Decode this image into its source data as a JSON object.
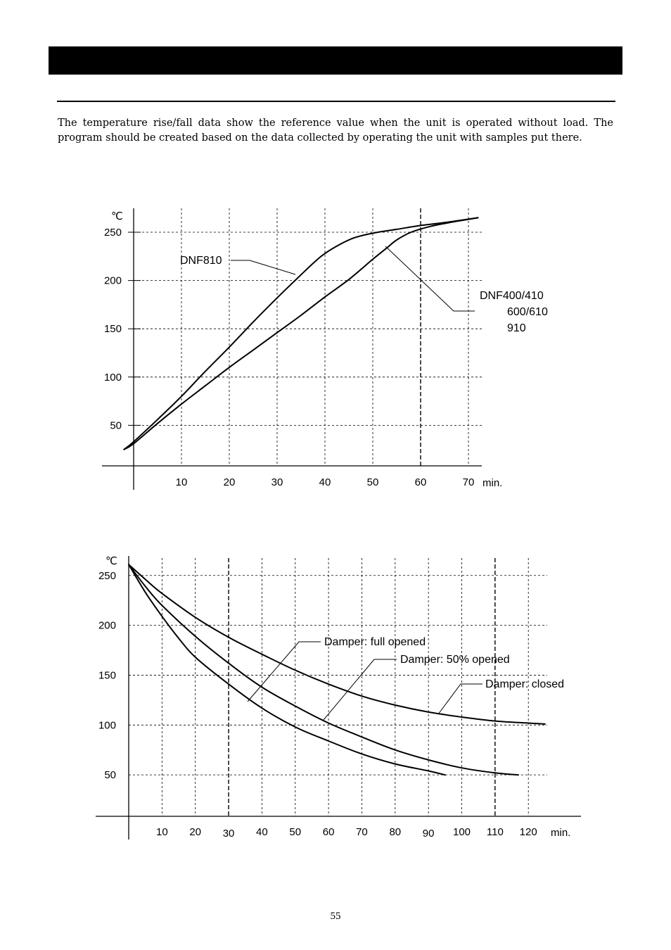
{
  "intro_text": "The temperature rise/fall data show the reference value when the unit is operated without load. The program should be created based on the data collected by operating the unit with samples put there.",
  "page_number": "55",
  "chart_data": [
    {
      "type": "line",
      "y_unit": "℃",
      "x_unit": "min.",
      "x_ticks": [
        10,
        20,
        30,
        40,
        50,
        60,
        70
      ],
      "y_ticks": [
        50,
        100,
        150,
        200,
        250
      ],
      "xlim": [
        0,
        72
      ],
      "ylim": [
        0,
        265
      ],
      "grid": true,
      "series": [
        {
          "name": "DNF810",
          "points": [
            [
              -2,
              25
            ],
            [
              0,
              33
            ],
            [
              5,
              56
            ],
            [
              10,
              80
            ],
            [
              15,
              106
            ],
            [
              20,
              131
            ],
            [
              25,
              157
            ],
            [
              30,
              182
            ],
            [
              35,
              206
            ],
            [
              38,
              220
            ],
            [
              40,
              228
            ],
            [
              43,
              237
            ],
            [
              46,
              244
            ],
            [
              50,
              249
            ],
            [
              55,
              253
            ],
            [
              60,
              257
            ],
            [
              65,
              260
            ],
            [
              72,
              265
            ]
          ]
        },
        {
          "name": "DNF400/410 600/610 910",
          "points": [
            [
              -2,
              25
            ],
            [
              0,
              31
            ],
            [
              5,
              52
            ],
            [
              10,
              72
            ],
            [
              15,
              91
            ],
            [
              20,
              110
            ],
            [
              25,
              128
            ],
            [
              30,
              146
            ],
            [
              35,
              164
            ],
            [
              40,
              183
            ],
            [
              45,
              201
            ],
            [
              50,
              222
            ],
            [
              53,
              234
            ],
            [
              55,
              242
            ],
            [
              58,
              250
            ],
            [
              62,
              256
            ],
            [
              66,
              260
            ],
            [
              72,
              265
            ]
          ]
        }
      ],
      "labels": [
        "DNF810",
        "DNF400/410",
        "600/610",
        "910"
      ]
    },
    {
      "type": "line",
      "y_unit": "℃",
      "x_unit": "min.",
      "x_ticks": [
        10,
        20,
        30,
        40,
        50,
        60,
        70,
        80,
        90,
        100,
        110,
        120
      ],
      "y_ticks": [
        50,
        100,
        150,
        200,
        250
      ],
      "xlim": [
        0,
        130
      ],
      "ylim": [
        0,
        265
      ],
      "grid": true,
      "series": [
        {
          "name": "Damper: full opened",
          "points": [
            [
              0,
              261
            ],
            [
              5,
              233
            ],
            [
              10,
              209
            ],
            [
              15,
              187
            ],
            [
              20,
              168
            ],
            [
              30,
              141
            ],
            [
              40,
              117
            ],
            [
              50,
              98
            ],
            [
              60,
              84
            ],
            [
              70,
              71
            ],
            [
              80,
              61
            ],
            [
              90,
              54
            ],
            [
              95,
              50
            ]
          ]
        },
        {
          "name": "Damper: 50% opened",
          "points": [
            [
              0,
              261
            ],
            [
              5,
              239
            ],
            [
              10,
              220
            ],
            [
              20,
              189
            ],
            [
              30,
              162
            ],
            [
              40,
              138
            ],
            [
              50,
              119
            ],
            [
              60,
              102
            ],
            [
              70,
              88
            ],
            [
              80,
              75
            ],
            [
              90,
              65
            ],
            [
              100,
              57
            ],
            [
              110,
              52
            ],
            [
              117,
              50
            ]
          ]
        },
        {
          "name": "Damper: closed",
          "points": [
            [
              0,
              261
            ],
            [
              5,
              246
            ],
            [
              10,
              232
            ],
            [
              20,
              208
            ],
            [
              30,
              188
            ],
            [
              40,
              171
            ],
            [
              50,
              155
            ],
            [
              60,
              141
            ],
            [
              70,
              129
            ],
            [
              80,
              120
            ],
            [
              90,
              113
            ],
            [
              100,
              108
            ],
            [
              110,
              104
            ],
            [
              120,
              102
            ],
            [
              125,
              101
            ]
          ]
        }
      ]
    }
  ]
}
